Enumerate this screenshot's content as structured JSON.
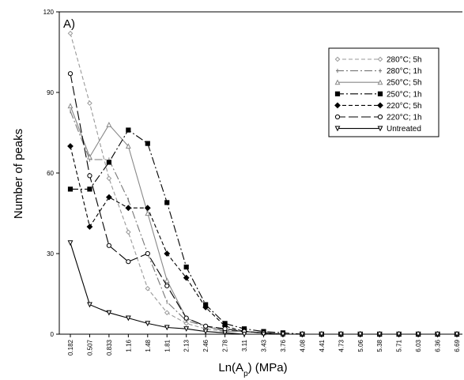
{
  "chart_data": {
    "type": "line",
    "panel_label": "A)",
    "xlabel": "Ln(A",
    "xlabel_sub": "p",
    "xlabel_suffix": ") (MPa)",
    "ylabel": "Number of peaks",
    "ylim": [
      0,
      120
    ],
    "yticks": [
      0,
      30,
      60,
      90,
      120
    ],
    "grid": false,
    "legend_position": "top-right",
    "x": [
      "0.182",
      "0.507",
      "0.833",
      "1.16",
      "1.48",
      "1.81",
      "2.13",
      "2.46",
      "2.78",
      "3.11",
      "3.43",
      "3.76",
      "4.08",
      "4.41",
      "4.73",
      "5.06",
      "5.38",
      "5.71",
      "6.03",
      "6.36",
      "6.69"
    ],
    "series": [
      {
        "name": "280°C; 5h",
        "color": "#999999",
        "dash": "5,3",
        "marker": "diamond-open",
        "values": [
          112,
          86,
          58,
          38,
          17,
          8,
          4,
          2,
          1,
          1,
          0.5,
          0,
          0,
          0,
          0,
          0,
          0,
          0,
          0,
          0,
          0
        ]
      },
      {
        "name": "280°C; 1h",
        "color": "#777777",
        "dash": "10,3,2,3",
        "marker": "tick",
        "values": [
          83,
          65,
          65,
          50,
          30,
          12,
          5,
          3,
          1.5,
          1,
          0.5,
          0,
          0,
          0,
          0,
          0,
          0,
          0,
          0,
          0,
          0
        ]
      },
      {
        "name": "250°C; 5h",
        "color": "#888888",
        "dash": "",
        "marker": "triangle-open",
        "values": [
          85,
          66,
          78,
          70,
          45,
          20,
          6,
          3,
          1,
          1,
          0.5,
          0,
          0,
          0,
          0,
          0,
          0,
          0,
          0,
          0,
          0
        ]
      },
      {
        "name": "250°C; 1h",
        "color": "#000000",
        "dash": "10,3,2,3",
        "marker": "square",
        "values": [
          54,
          54,
          64,
          76,
          71,
          49,
          25,
          11,
          4,
          2,
          1,
          0.5,
          0,
          0,
          0,
          0,
          0,
          0,
          0,
          0,
          0
        ]
      },
      {
        "name": "220°C; 5h",
        "color": "#000000",
        "dash": "5,3",
        "marker": "diamond",
        "values": [
          70,
          40,
          51,
          47,
          47,
          30,
          21,
          10,
          3,
          1,
          0.5,
          0,
          0,
          0,
          0,
          0,
          0,
          0,
          0,
          0,
          0
        ]
      },
      {
        "name": "220°C; 1h",
        "color": "#000000",
        "dash": "12,4",
        "marker": "circle-open",
        "values": [
          97,
          59,
          33,
          27,
          30,
          18,
          6,
          3,
          2,
          1,
          0.5,
          0,
          0,
          0,
          0,
          0,
          0,
          0,
          0,
          0,
          0
        ]
      },
      {
        "name": "Untreated",
        "color": "#000000",
        "dash": "",
        "marker": "triangle-down",
        "values": [
          34,
          11,
          8,
          6,
          4,
          2.5,
          2,
          1,
          0.5,
          0,
          0,
          0,
          0,
          0,
          0,
          0,
          0,
          0,
          0,
          0,
          0
        ]
      }
    ]
  }
}
